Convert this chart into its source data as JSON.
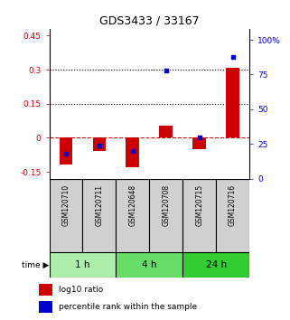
{
  "title": "GDS3433 / 33167",
  "samples": [
    "GSM120710",
    "GSM120711",
    "GSM120648",
    "GSM120708",
    "GSM120715",
    "GSM120716"
  ],
  "log10_ratio": [
    -0.12,
    -0.06,
    -0.13,
    0.055,
    -0.05,
    0.31
  ],
  "percentile_rank": [
    18,
    24,
    20,
    78,
    30,
    88
  ],
  "groups": [
    {
      "label": "1 h",
      "indices": [
        0,
        1
      ],
      "color": "#aaf0aa"
    },
    {
      "label": "4 h",
      "indices": [
        2,
        3
      ],
      "color": "#66dd66"
    },
    {
      "label": "24 h",
      "indices": [
        4,
        5
      ],
      "color": "#33cc33"
    }
  ],
  "bar_color": "#cc0000",
  "dot_color": "#0000cc",
  "ylim_left": [
    -0.18,
    0.48
  ],
  "ylim_right": [
    0,
    108
  ],
  "yticks_left": [
    -0.15,
    0.0,
    0.15,
    0.3,
    0.45
  ],
  "ytick_labels_left": [
    "-0.15",
    "0",
    "0.15",
    "0.3",
    "0.45"
  ],
  "yticks_right": [
    0,
    25,
    50,
    75,
    100
  ],
  "ytick_labels_right": [
    "0",
    "25",
    "50",
    "75",
    "100%"
  ],
  "hlines": [
    0.15,
    0.3
  ],
  "sample_bg": "#d0d0d0",
  "label_red": "log10 ratio",
  "label_blue": "percentile rank within the sample"
}
